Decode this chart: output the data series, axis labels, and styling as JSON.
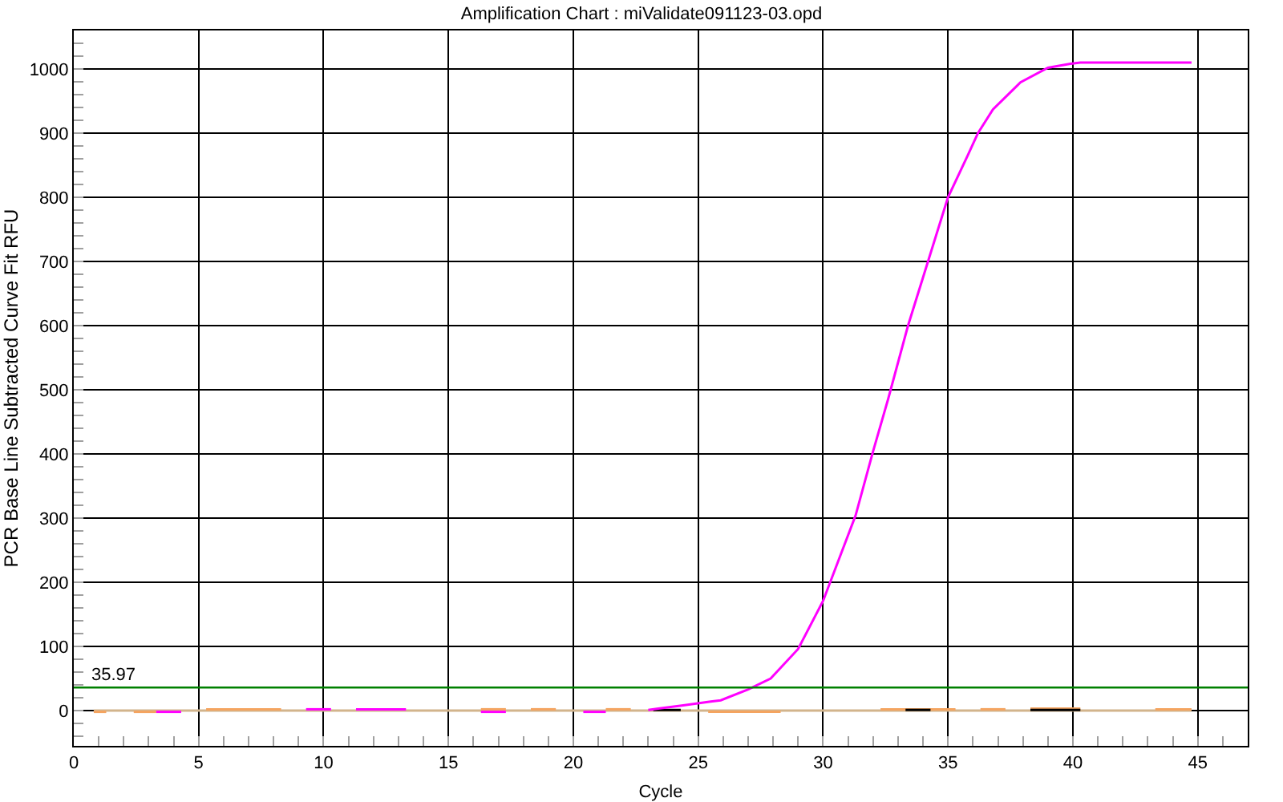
{
  "chart_data": {
    "type": "line",
    "title": "Amplification Chart : miValidate091123-03.opd",
    "xlabel": "Cycle",
    "ylabel": "PCR Base Line Subtracted Curve Fit RFU",
    "xlim": [
      0,
      47
    ],
    "ylim": [
      -55,
      1060
    ],
    "grid": true,
    "xticks": [
      0,
      5,
      10,
      15,
      20,
      25,
      30,
      35,
      40,
      45,
      {
        "value": 1,
        "label": null
      },
      {
        "value": 2,
        "label": null
      },
      {
        "value": 3,
        "label": null
      },
      {
        "value": 4,
        "label": null
      },
      {
        "value": 6,
        "label": null
      },
      {
        "value": 7,
        "label": null
      },
      {
        "value": 8,
        "label": null
      },
      {
        "value": 9,
        "label": null
      },
      {
        "value": 11,
        "label": null
      },
      {
        "value": 12,
        "label": null
      },
      {
        "value": 13,
        "label": null
      },
      {
        "value": 14,
        "label": null
      },
      {
        "value": 16,
        "label": null
      },
      {
        "value": 17,
        "label": null
      },
      {
        "value": 18,
        "label": null
      },
      {
        "value": 19,
        "label": null
      },
      {
        "value": 21,
        "label": null
      },
      {
        "value": 22,
        "label": null
      },
      {
        "value": 23,
        "label": null
      },
      {
        "value": 24,
        "label": null
      },
      {
        "value": 26,
        "label": null
      },
      {
        "value": 27,
        "label": null
      },
      {
        "value": 28,
        "label": null
      },
      {
        "value": 29,
        "label": null
      },
      {
        "value": 31,
        "label": null
      },
      {
        "value": 32,
        "label": null
      },
      {
        "value": 33,
        "label": null
      },
      {
        "value": 34,
        "label": null
      },
      {
        "value": 36,
        "label": null
      },
      {
        "value": 37,
        "label": null
      },
      {
        "value": 38,
        "label": null
      },
      {
        "value": 39,
        "label": null
      },
      {
        "value": 41,
        "label": null
      },
      {
        "value": 42,
        "label": null
      },
      {
        "value": 43,
        "label": null
      },
      {
        "value": 44,
        "label": null
      },
      {
        "value": 46,
        "label": null
      }
    ],
    "yticks": [
      0,
      100,
      200,
      300,
      400,
      500,
      600,
      700,
      800,
      900,
      1000,
      {
        "value": -40,
        "label": null
      },
      {
        "value": -20,
        "label": null
      },
      {
        "value": 20,
        "label": null
      },
      {
        "value": 40,
        "label": null
      },
      {
        "value": 60,
        "label": null
      },
      {
        "value": 80,
        "label": null
      },
      {
        "value": 120,
        "label": null
      },
      {
        "value": 140,
        "label": null
      },
      {
        "value": 160,
        "label": null
      },
      {
        "value": 180,
        "label": null
      },
      {
        "value": 220,
        "label": null
      },
      {
        "value": 240,
        "label": null
      },
      {
        "value": 260,
        "label": null
      },
      {
        "value": 280,
        "label": null
      },
      {
        "value": 320,
        "label": null
      },
      {
        "value": 340,
        "label": null
      },
      {
        "value": 360,
        "label": null
      },
      {
        "value": 380,
        "label": null
      },
      {
        "value": 420,
        "label": null
      },
      {
        "value": 440,
        "label": null
      },
      {
        "value": 460,
        "label": null
      },
      {
        "value": 480,
        "label": null
      },
      {
        "value": 520,
        "label": null
      },
      {
        "value": 540,
        "label": null
      },
      {
        "value": 560,
        "label": null
      },
      {
        "value": 580,
        "label": null
      },
      {
        "value": 620,
        "label": null
      },
      {
        "value": 640,
        "label": null
      },
      {
        "value": 660,
        "label": null
      },
      {
        "value": 680,
        "label": null
      },
      {
        "value": 720,
        "label": null
      },
      {
        "value": 740,
        "label": null
      },
      {
        "value": 760,
        "label": null
      },
      {
        "value": 780,
        "label": null
      },
      {
        "value": 820,
        "label": null
      },
      {
        "value": 840,
        "label": null
      },
      {
        "value": 860,
        "label": null
      },
      {
        "value": 880,
        "label": null
      },
      {
        "value": 920,
        "label": null
      },
      {
        "value": 940,
        "label": null
      },
      {
        "value": 960,
        "label": null
      },
      {
        "value": 980,
        "label": null
      },
      {
        "value": 1020,
        "label": null
      },
      {
        "value": 1040,
        "label": null
      }
    ],
    "ref_lines": [
      {
        "axis": "y",
        "value": 35.97,
        "label": "35.97",
        "color": "#008000"
      }
    ],
    "series": [
      {
        "color": "#d2b48c",
        "x": [
          0.8,
          44.75
        ],
        "values": [
          0,
          0
        ]
      },
      {
        "color": "#f4a460",
        "x": [
          0.8,
          1.3
        ],
        "values": [
          -2,
          -2
        ]
      },
      {
        "color": "#f4a460",
        "x": [
          2.4,
          3.3
        ],
        "values": [
          -2,
          -2
        ]
      },
      {
        "color": "#f4a460",
        "x": [
          5.3,
          8.3
        ],
        "values": [
          2,
          2
        ]
      },
      {
        "color": "#f4a460",
        "x": [
          16.3,
          17.3
        ],
        "values": [
          2,
          2
        ]
      },
      {
        "color": "#f4a460",
        "x": [
          18.3,
          19.3
        ],
        "values": [
          2,
          2
        ]
      },
      {
        "color": "#f4a460",
        "x": [
          21.3,
          22.3
        ],
        "values": [
          2,
          2
        ]
      },
      {
        "color": "#f4a460",
        "x": [
          25.4,
          28.3
        ],
        "values": [
          -2,
          -2
        ]
      },
      {
        "color": "#f4a460",
        "x": [
          32.3,
          35.3
        ],
        "values": [
          2,
          2
        ]
      },
      {
        "color": "#f4a460",
        "x": [
          36.3,
          37.3
        ],
        "values": [
          2,
          2
        ]
      },
      {
        "color": "#f4a460",
        "x": [
          38.3,
          40.3
        ],
        "values": [
          3,
          3
        ]
      },
      {
        "color": "#f4a460",
        "x": [
          43.3,
          44.75
        ],
        "values": [
          2,
          2
        ]
      },
      {
        "color": "#000000",
        "x": [
          23.2,
          24.3
        ],
        "values": [
          1,
          1
        ]
      },
      {
        "color": "#000000",
        "x": [
          33.3,
          34.3
        ],
        "values": [
          1,
          1
        ]
      },
      {
        "color": "#000000",
        "x": [
          38.3,
          40.3
        ],
        "values": [
          1,
          1
        ]
      },
      {
        "color": "#ff00ff",
        "x": [
          3.3,
          4.3
        ],
        "values": [
          -2,
          -2
        ]
      },
      {
        "color": "#ff00ff",
        "x": [
          9.3,
          10.3
        ],
        "values": [
          2,
          2
        ]
      },
      {
        "color": "#ff00ff",
        "x": [
          11.3,
          13.3
        ],
        "values": [
          2,
          2
        ]
      },
      {
        "color": "#ff00ff",
        "x": [
          16.3,
          17.3
        ],
        "values": [
          -2,
          -2
        ]
      },
      {
        "color": "#ff00ff",
        "x": [
          20.4,
          21.3
        ],
        "values": [
          -2,
          -2
        ]
      },
      {
        "color": "#ff00ff",
        "x": [
          23.0,
          23.4,
          24.4,
          25.5,
          25.9,
          27.0,
          27.9,
          29.0,
          30.0,
          31.3,
          32.0,
          32.6,
          33.4,
          34.2,
          35.0,
          35.8,
          36.2,
          36.8,
          37.9,
          39.0,
          39.9,
          40.3,
          44.75
        ],
        "values": [
          1,
          3,
          8,
          14,
          16,
          33,
          50,
          96,
          171,
          304,
          404,
          485,
          600,
          700,
          800,
          866,
          900,
          937,
          979,
          1002,
          1008,
          1010,
          1010
        ]
      }
    ]
  }
}
